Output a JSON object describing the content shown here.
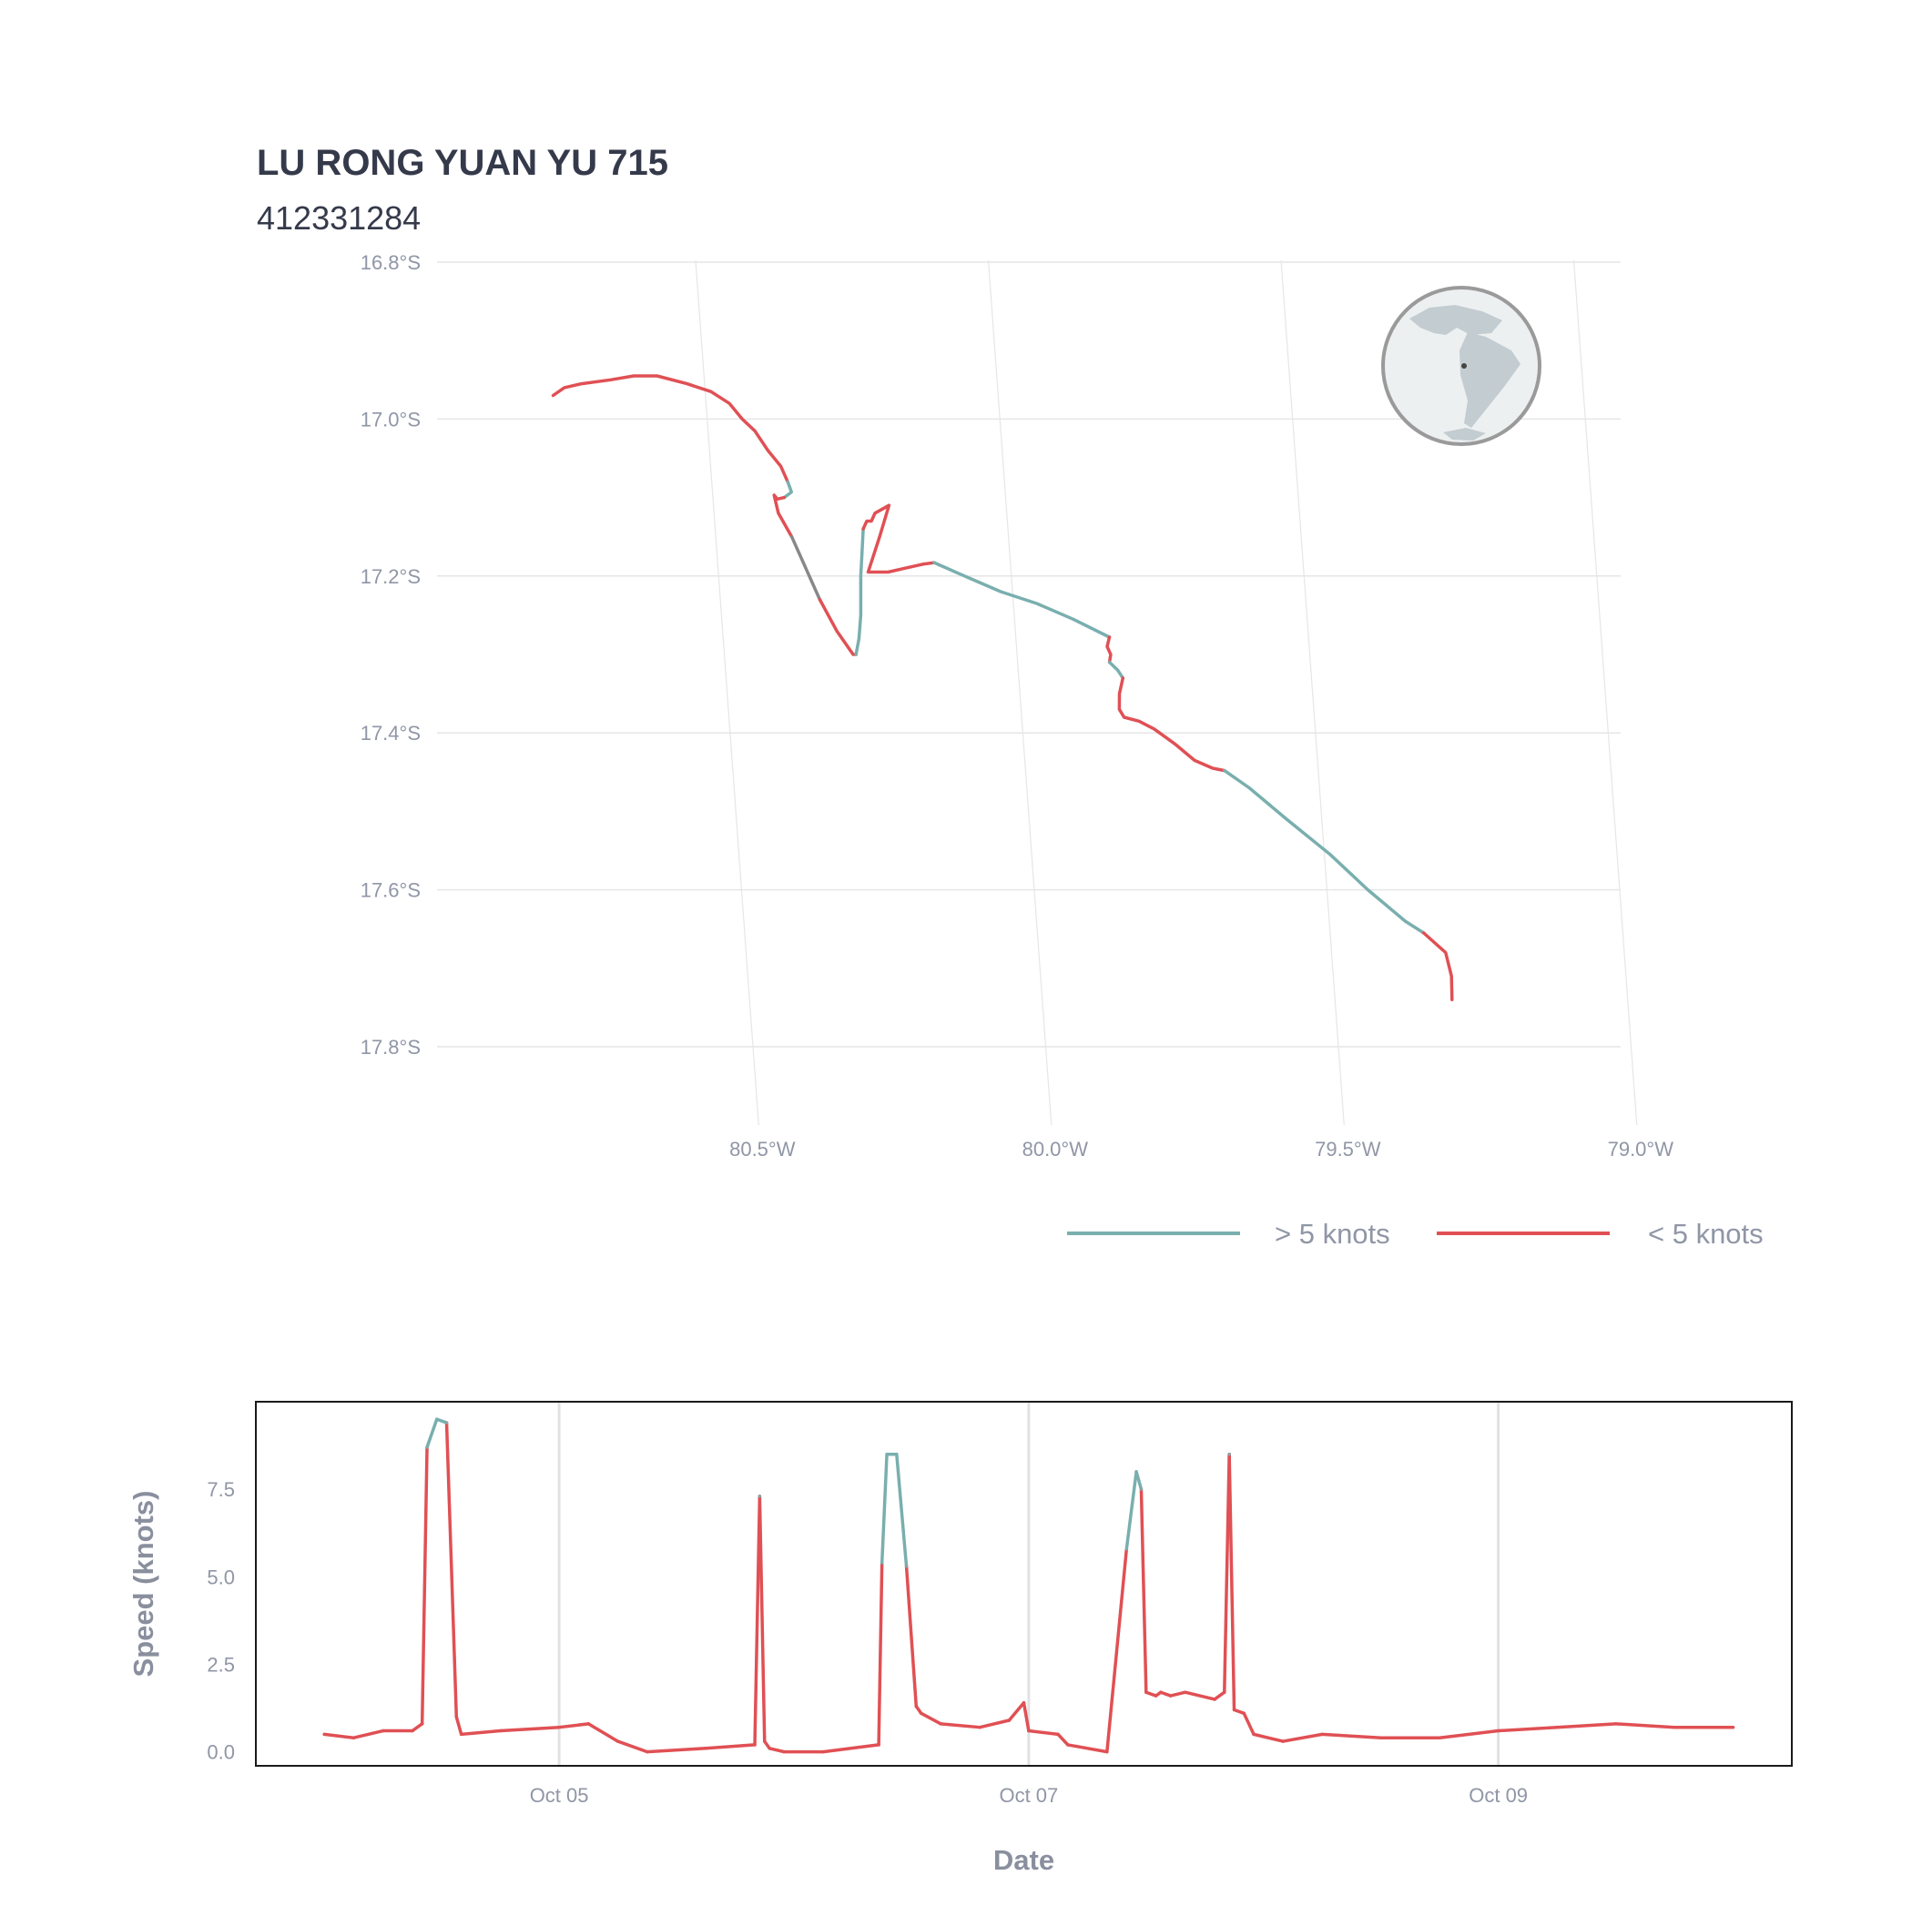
{
  "header": {
    "title": "LU RONG YUAN YU 715",
    "subtitle": "412331284"
  },
  "colors": {
    "fast": "#79afae",
    "slow": "#e05054",
    "gap": "#888888",
    "axis_text": "#9096a6",
    "axis_title": "#8a8f9e",
    "grid": "#e6e6e6",
    "title": "#353a4b",
    "globe_land": "#c3ccd0",
    "globe_water": "#edf0f1",
    "globe_ring": "#9a9a9a"
  },
  "chart_data": [
    {
      "type": "line",
      "subtype": "track-map",
      "title": "LU RONG YUAN YU 715",
      "subtitle": "412331284",
      "xlabel": "",
      "ylabel": "",
      "lon_ticks": [
        "80.5°W",
        "80.0°W",
        "79.5°W",
        "79.0°W"
      ],
      "lat_ticks": [
        "16.8°S",
        "17.0°S",
        "17.2°S",
        "17.4°S",
        "17.6°S",
        "17.8°S"
      ],
      "lon_range": [
        -81.0,
        -78.95
      ],
      "lat_range": [
        -17.9,
        -16.8
      ],
      "grid": true,
      "legend": {
        "position": "bottom-right",
        "entries": [
          {
            "label": "> 5 knots",
            "color_key": "fast"
          },
          {
            "label": "< 5 knots",
            "color_key": "slow"
          }
        ]
      },
      "inset": {
        "type": "globe",
        "region": "Americas",
        "marker": "track location",
        "position": "top-right"
      },
      "segments": [
        {
          "speed": "slow",
          "points": [
            [
              -80.76,
              -16.97
            ],
            [
              -80.74,
              -16.96
            ],
            [
              -80.71,
              -16.955
            ],
            [
              -80.66,
              -16.95
            ],
            [
              -80.62,
              -16.945
            ],
            [
              -80.58,
              -16.945
            ],
            [
              -80.53,
              -16.955
            ],
            [
              -80.49,
              -16.965
            ],
            [
              -80.46,
              -16.98
            ],
            [
              -80.44,
              -17.0
            ],
            [
              -80.42,
              -17.015
            ],
            [
              -80.4,
              -17.04
            ],
            [
              -80.38,
              -17.06
            ],
            [
              -80.37,
              -17.08
            ]
          ]
        },
        {
          "speed": "fast",
          "points": [
            [
              -80.37,
              -17.08
            ],
            [
              -80.365,
              -17.093
            ],
            [
              -80.378,
              -17.1
            ]
          ]
        },
        {
          "speed": "slow",
          "points": [
            [
              -80.378,
              -17.1
            ],
            [
              -80.39,
              -17.102
            ],
            [
              -80.395,
              -17.097
            ],
            [
              -80.39,
              -17.12
            ],
            [
              -80.37,
              -17.15
            ]
          ]
        },
        {
          "speed": "gap",
          "points": [
            [
              -80.37,
              -17.15
            ],
            [
              -80.35,
              -17.19
            ],
            [
              -80.33,
              -17.23
            ]
          ]
        },
        {
          "speed": "slow",
          "points": [
            [
              -80.33,
              -17.23
            ],
            [
              -80.305,
              -17.27
            ],
            [
              -80.28,
              -17.3
            ],
            [
              -80.275,
              -17.3
            ]
          ]
        },
        {
          "speed": "fast",
          "points": [
            [
              -80.275,
              -17.3
            ],
            [
              -80.268,
              -17.28
            ],
            [
              -80.262,
              -17.25
            ],
            [
              -80.257,
              -17.2
            ],
            [
              -80.252,
              -17.17
            ],
            [
              -80.247,
              -17.14
            ]
          ]
        },
        {
          "speed": "slow",
          "points": [
            [
              -80.247,
              -17.14
            ],
            [
              -80.24,
              -17.13
            ],
            [
              -80.232,
              -17.13
            ],
            [
              -80.225,
              -17.12
            ],
            [
              -80.2,
              -17.11
            ],
            [
              -80.22,
              -17.15
            ],
            [
              -80.244,
              -17.195
            ],
            [
              -80.238,
              -17.195
            ],
            [
              -80.21,
              -17.195
            ],
            [
              -80.18,
              -17.19
            ],
            [
              -80.15,
              -17.185
            ],
            [
              -80.13,
              -17.183
            ]
          ]
        },
        {
          "speed": "fast",
          "points": [
            [
              -80.13,
              -17.183
            ],
            [
              -80.08,
              -17.2
            ],
            [
              -80.02,
              -17.22
            ],
            [
              -79.96,
              -17.235
            ],
            [
              -79.9,
              -17.255
            ],
            [
              -79.84,
              -17.278
            ]
          ]
        },
        {
          "speed": "slow",
          "points": [
            [
              -79.84,
              -17.278
            ],
            [
              -79.845,
              -17.29
            ],
            [
              -79.84,
              -17.3
            ],
            [
              -79.843,
              -17.31
            ]
          ]
        },
        {
          "speed": "fast",
          "points": [
            [
              -79.843,
              -17.31
            ],
            [
              -79.83,
              -17.32
            ],
            [
              -79.822,
              -17.33
            ]
          ]
        },
        {
          "speed": "slow",
          "points": [
            [
              -79.822,
              -17.33
            ],
            [
              -79.83,
              -17.35
            ],
            [
              -79.832,
              -17.37
            ],
            [
              -79.825,
              -17.38
            ],
            [
              -79.8,
              -17.385
            ],
            [
              -79.775,
              -17.395
            ],
            [
              -79.74,
              -17.415
            ],
            [
              -79.71,
              -17.435
            ],
            [
              -79.68,
              -17.445
            ],
            [
              -79.66,
              -17.448
            ]
          ]
        },
        {
          "speed": "fast",
          "points": [
            [
              -79.66,
              -17.448
            ],
            [
              -79.62,
              -17.47
            ],
            [
              -79.56,
              -17.51
            ],
            [
              -79.49,
              -17.555
            ],
            [
              -79.43,
              -17.6
            ],
            [
              -79.37,
              -17.64
            ],
            [
              -79.34,
              -17.655
            ]
          ]
        },
        {
          "speed": "slow",
          "points": [
            [
              -79.34,
              -17.655
            ],
            [
              -79.305,
              -17.68
            ],
            [
              -79.298,
              -17.71
            ],
            [
              -79.3,
              -17.74
            ]
          ]
        }
      ]
    },
    {
      "type": "line",
      "title": "",
      "xlabel": "Date",
      "ylabel": "Speed (knots)",
      "x_ticks": [
        "Oct 05",
        "Oct 07",
        "Oct 09"
      ],
      "y_ticks": [
        "0.0",
        "2.5",
        "5.0",
        "7.5"
      ],
      "xlim": [
        "2023-10-03T17:00",
        "2023-10-10T06:00"
      ],
      "ylim": [
        -0.4,
        10.0
      ],
      "grid": true,
      "threshold": 5,
      "x": [
        "2023-10-04T00:00",
        "2023-10-04T03:00",
        "2023-10-04T06:00",
        "2023-10-04T09:00",
        "2023-10-04T10:00",
        "2023-10-04T10:30",
        "2023-10-04T11:30",
        "2023-10-04T12:30",
        "2023-10-04T13:30",
        "2023-10-04T14:00",
        "2023-10-04T18:00",
        "2023-10-05T00:00",
        "2023-10-05T03:00",
        "2023-10-05T06:00",
        "2023-10-05T09:00",
        "2023-10-05T15:00",
        "2023-10-05T20:00",
        "2023-10-05T20:30",
        "2023-10-05T21:00",
        "2023-10-05T21:30",
        "2023-10-05T23:00",
        "2023-10-06T03:00",
        "2023-10-06T08:40",
        "2023-10-06T09:00",
        "2023-10-06T09:30",
        "2023-10-06T10:30",
        "2023-10-06T11:30",
        "2023-10-06T12:30",
        "2023-10-06T13:00",
        "2023-10-06T15:00",
        "2023-10-06T19:00",
        "2023-10-06T22:00",
        "2023-10-06T23:30",
        "2023-10-07T00:00",
        "2023-10-07T03:00",
        "2023-10-07T04:00",
        "2023-10-07T08:00",
        "2023-10-07T10:00",
        "2023-10-07T11:00",
        "2023-10-07T11:30",
        "2023-10-07T12:00",
        "2023-10-07T13:00",
        "2023-10-07T13:30",
        "2023-10-07T14:30",
        "2023-10-07T16:00",
        "2023-10-07T19:00",
        "2023-10-07T20:00",
        "2023-10-07T20:30",
        "2023-10-07T21:00",
        "2023-10-07T22:00",
        "2023-10-07T23:00",
        "2023-10-08T02:00",
        "2023-10-08T06:00",
        "2023-10-08T12:00",
        "2023-10-08T18:00",
        "2023-10-09T00:00",
        "2023-10-09T06:00",
        "2023-10-09T12:00",
        "2023-10-09T18:00",
        "2023-10-10T00:00"
      ],
      "values": [
        0.5,
        0.4,
        0.6,
        0.6,
        0.8,
        8.7,
        9.5,
        9.4,
        1.0,
        0.5,
        0.6,
        0.7,
        0.8,
        0.3,
        0.0,
        0.1,
        0.2,
        7.3,
        0.3,
        0.1,
        0.0,
        0.0,
        0.2,
        5.4,
        8.5,
        8.5,
        5.3,
        1.3,
        1.1,
        0.8,
        0.7,
        0.9,
        1.4,
        0.6,
        0.5,
        0.2,
        0.0,
        5.8,
        8.0,
        7.5,
        1.7,
        1.6,
        1.7,
        1.6,
        1.7,
        1.5,
        1.7,
        8.5,
        1.2,
        1.1,
        0.5,
        0.3,
        0.5,
        0.4,
        0.4,
        0.6,
        0.7,
        0.8,
        0.7,
        0.7
      ]
    }
  ]
}
